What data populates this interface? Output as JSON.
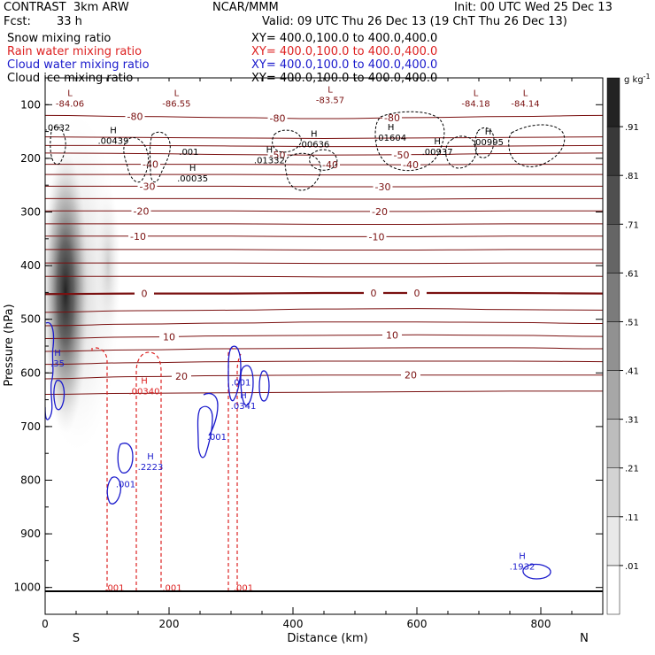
{
  "header": {
    "product": "CONTRAST  3km ARW",
    "center": "NCAR/MMM",
    "init": "Init: 00 UTC Wed 25 Dec 13",
    "fcst_label": "Fcst:",
    "fcst_value": "33 h",
    "valid": "Valid: 09 UTC Thu 26 Dec 13 (19 ChT Thu 26 Dec 13)",
    "fields": [
      {
        "name": "Snow mixing ratio",
        "xy": "XY= 400.0,100.0 to 400.0,400.0",
        "color": "#000000"
      },
      {
        "name": "Rain water mixing ratio",
        "xy": "XY= 400.0,100.0 to 400.0,400.0",
        "color": "#dd2222"
      },
      {
        "name": "Cloud water mixing ratio",
        "xy": "XY= 400.0,100.0 to 400.0,400.0",
        "color": "#1a1acc"
      },
      {
        "name": "Cloud ice mixing ratio",
        "xy": "XY= 400.0,100.0 to 400.0,400.0",
        "color": "#000000"
      }
    ]
  },
  "chart_data": {
    "type": "cross-section",
    "xlabel": "Distance (km)",
    "ylabel": "Pressure (hPa)",
    "xlim": [
      0,
      900
    ],
    "ylim": [
      1050,
      50
    ],
    "x_ticks": [
      0,
      200,
      400,
      600,
      800
    ],
    "y_ticks": [
      100,
      200,
      300,
      400,
      500,
      600,
      700,
      800,
      900,
      1000
    ],
    "x_tick_labels": [
      "0",
      "200",
      "400",
      "600",
      "800"
    ],
    "y_tick_labels": [
      "100",
      "200",
      "300",
      "400",
      "500",
      "600",
      "700",
      "800",
      "900",
      "1000"
    ],
    "end_labels": {
      "left": "S",
      "right": "N"
    },
    "colorbar": {
      "unit": "g kg",
      "unit_exp": "-1",
      "levels": [
        0.01,
        0.11,
        0.21,
        0.31,
        0.41,
        0.51,
        0.61,
        0.71,
        0.81,
        0.91
      ],
      "level_labels": [
        ".01",
        ".11",
        ".21",
        ".31",
        ".41",
        ".51",
        ".61",
        ".71",
        ".81",
        ".91"
      ]
    },
    "temperature_contours": [
      {
        "p": [
          120,
          122,
          124,
          126,
          124,
          122,
          120
        ],
        "label": "-80",
        "label_x": [
          145,
          375,
          560
        ]
      },
      {
        "p": [
          160,
          161,
          162,
          163,
          162,
          161,
          160
        ]
      },
      {
        "p": [
          176,
          176,
          177,
          178,
          178,
          177,
          176
        ]
      },
      {
        "p": [
          190,
          191,
          193,
          194,
          193,
          191,
          190
        ],
        "label": "-50",
        "label_x": [
          375,
          575
        ]
      },
      {
        "p": [
          211,
          211,
          211,
          212,
          212,
          211,
          211
        ],
        "label": "-40",
        "label_x": [
          170,
          460,
          590
        ]
      },
      {
        "p": [
          230,
          230,
          230,
          231,
          231,
          230,
          230
        ]
      },
      {
        "p": [
          252,
          252,
          252,
          253,
          253,
          252,
          252
        ],
        "label": "-30",
        "label_x": [
          165,
          545
        ]
      },
      {
        "p": [
          275,
          275,
          275,
          276,
          276,
          275,
          275
        ]
      },
      {
        "p": [
          298,
          298,
          298,
          299,
          299,
          298,
          298
        ],
        "label": "-20",
        "label_x": [
          155,
          540
        ]
      },
      {
        "p": [
          322,
          322,
          322,
          323,
          323,
          322,
          322
        ]
      },
      {
        "p": [
          345,
          345,
          345,
          346,
          346,
          345,
          345
        ],
        "label": "-10",
        "label_x": [
          150,
          535
        ]
      },
      {
        "p": [
          370,
          370,
          370,
          371,
          371,
          370,
          370
        ]
      },
      {
        "p": [
          395,
          395,
          395,
          396,
          396,
          395,
          395
        ]
      },
      {
        "p": [
          420,
          420,
          420,
          421,
          421,
          420,
          420
        ]
      },
      {
        "p": [
          453,
          452,
          452,
          451,
          451,
          451,
          452
        ],
        "label": "0",
        "label_x": [
          160,
          530,
          600
        ],
        "bold": true
      },
      {
        "p": [
          487,
          484,
          483,
          481,
          480,
          482,
          483
        ]
      },
      {
        "p": [
          512,
          509,
          507,
          505,
          505,
          506,
          508
        ]
      },
      {
        "p": [
          536,
          533,
          531,
          530,
          529,
          530,
          532
        ],
        "label": "10",
        "label_x": [
          200,
          560
        ]
      },
      {
        "p": [
          560,
          557,
          555,
          554,
          553,
          553,
          555
        ]
      },
      {
        "p": [
          584,
          581,
          579,
          578,
          578,
          578,
          579
        ]
      },
      {
        "p": [
          611,
          607,
          605,
          604,
          604,
          604,
          604
        ],
        "label": "20",
        "label_x": [
          220,
          590
        ]
      },
      {
        "p": [
          640,
          638,
          637,
          636,
          635,
          634,
          634
        ]
      }
    ],
    "low_labels": [
      {
        "x": 40,
        "p": 100,
        "sym": "L",
        "label": "-84.06"
      },
      {
        "x": 212,
        "p": 100,
        "sym": "L",
        "label": "-86.55"
      },
      {
        "x": 460,
        "p": 94,
        "sym": "L",
        "label": "-83.57"
      },
      {
        "x": 695,
        "p": 100,
        "sym": "L",
        "label": "-84.18"
      },
      {
        "x": 775,
        "p": 100,
        "sym": "L",
        "label": "-84.14"
      }
    ],
    "cloud_ice_labels": [
      {
        "x": 20,
        "p": 145,
        "sym": "",
        "label": ".0632"
      },
      {
        "x": 110,
        "p": 170,
        "sym": "H",
        "label": ".00439"
      },
      {
        "x": 238,
        "p": 240,
        "sym": "H",
        "label": ".00035"
      },
      {
        "x": 362,
        "p": 206,
        "sym": "H",
        "label": ".01332"
      },
      {
        "x": 434,
        "p": 176,
        "sym": "H",
        "label": ".00636"
      },
      {
        "x": 558,
        "p": 164,
        "sym": "H",
        "label": ".01604"
      },
      {
        "x": 633,
        "p": 190,
        "sym": "H",
        "label": ".00937"
      },
      {
        "x": 715,
        "p": 172,
        "sym": "H",
        "label": ".00995"
      },
      {
        "x": 232,
        "p": 190,
        "sym": "",
        "label": ".001"
      }
    ],
    "rain_labels": [
      {
        "x": 160,
        "p": 637,
        "sym": "H",
        "label": ".00340"
      },
      {
        "x": 112,
        "p": 1003,
        "sym": "",
        "label": ".001"
      },
      {
        "x": 205,
        "p": 1003,
        "sym": "",
        "label": ".001"
      },
      {
        "x": 320,
        "p": 1003,
        "sym": "",
        "label": ".001"
      }
    ],
    "cloud_water_labels": [
      {
        "x": 20,
        "p": 585,
        "sym": "H",
        "label": ".35"
      },
      {
        "x": 170,
        "p": 778,
        "sym": "H",
        "label": ".2223"
      },
      {
        "x": 130,
        "p": 810,
        "sym": "",
        "label": ".001"
      },
      {
        "x": 277,
        "p": 722,
        "sym": "",
        "label": ".001"
      },
      {
        "x": 316,
        "p": 620,
        "sym": "",
        "label": ".001"
      },
      {
        "x": 320,
        "p": 664,
        "sym": "H",
        "label": ".0341"
      },
      {
        "x": 770,
        "p": 963,
        "sym": "H",
        "label": ".1932"
      }
    ]
  }
}
